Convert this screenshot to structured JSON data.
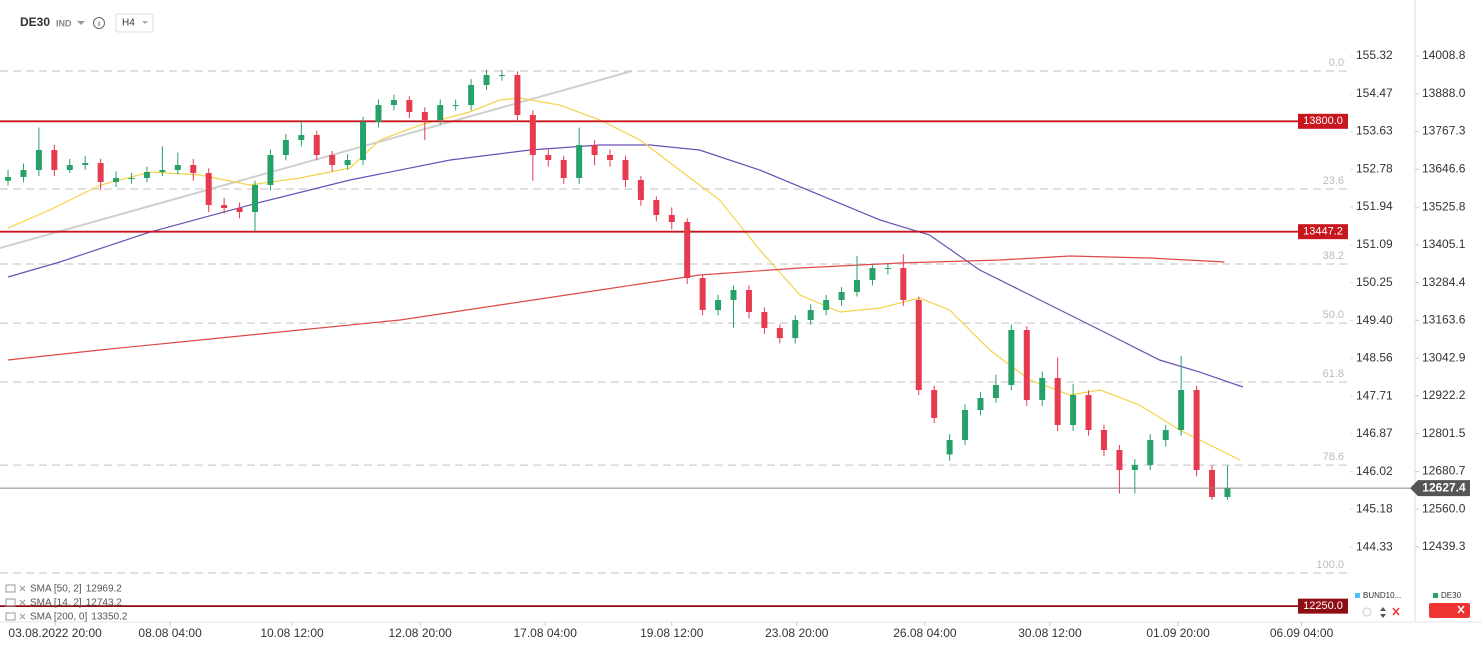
{
  "chart_data": {
    "type": "candlestick",
    "title": "DE30",
    "instrument_type": "IND",
    "timeframe": "H4",
    "xlim": [
      -1.04,
      182.3
    ],
    "ylim": [
      12205.7,
      14155.9
    ],
    "y2lim": [
      142.7,
      156.35
    ],
    "xticks": [
      {
        "value": 6.1,
        "label": "03.08.2022 20:00"
      },
      {
        "value": 21.0,
        "label": "08.08 04:00"
      },
      {
        "value": 36.8,
        "label": "10.08 12:00"
      },
      {
        "value": 53.4,
        "label": "12.08 20:00"
      },
      {
        "value": 69.6,
        "label": "17.08 04:00"
      },
      {
        "value": 86.0,
        "label": "19.08 12:00"
      },
      {
        "value": 102.2,
        "label": "23.08 20:00"
      },
      {
        "value": 118.8,
        "label": "26.08 04:00"
      },
      {
        "value": 135.0,
        "label": "30.08 12:00"
      },
      {
        "value": 151.6,
        "label": "01.09 20:00"
      },
      {
        "value": 167.6,
        "label": "06.09 04:00"
      }
    ],
    "yticks": [
      14008.8,
      {
        "value": 13888.0,
        "label": "13888.0"
      },
      13767.3,
      13646.6,
      13525.8,
      13405.1,
      13284.4,
      13163.6,
      13042.9,
      12922.2,
      12801.5,
      12680.7,
      {
        "value": 12560.0,
        "label": "12560.0"
      },
      12439.3
    ],
    "y2ticks": [
      155.32,
      154.47,
      153.63,
      152.78,
      151.94,
      151.09,
      150.25,
      {
        "value": 149.4,
        "label": "149.40"
      },
      148.56,
      147.71,
      146.87,
      146.02,
      145.18,
      144.33
    ],
    "x": [
      0,
      2,
      4,
      6,
      8,
      10,
      12,
      14,
      16,
      18,
      20,
      22,
      24,
      26,
      28,
      30,
      32,
      34,
      36,
      38,
      40,
      42,
      44,
      46,
      48,
      50,
      52,
      54,
      56,
      58,
      60,
      62,
      64,
      66,
      68,
      70,
      72,
      74,
      76,
      78,
      80,
      82,
      84,
      86,
      88,
      90,
      92,
      94,
      96,
      98,
      100,
      102,
      104,
      106,
      108,
      110,
      112,
      114,
      116,
      118,
      120,
      122,
      124,
      126,
      128,
      130,
      132,
      134,
      136,
      138,
      140,
      142,
      144,
      146,
      148,
      150,
      152,
      154,
      156,
      158
    ],
    "series": [
      {
        "name": "DE30",
        "up_color": "#26a269",
        "down_color": "#e63a4f",
        "open": [
          13610,
          13622.0,
          13644.3,
          13708.3,
          13644.3,
          13660.3,
          13666.7,
          13606.0,
          13618.8,
          13618.8,
          13637.9,
          13644.3,
          13660.3,
          13634.8,
          13532.4,
          13522.9,
          13510.1,
          13596.4,
          13692.3,
          13740.3,
          13756.2,
          13692.3,
          13660.3,
          13676.3,
          13797.8,
          13852.1,
          13868.1,
          13829.8,
          13804.2,
          13852.1,
          13852.1,
          13916.1,
          13948.1,
          13948.1,
          13820.2,
          13692.3,
          13676.3,
          13618.8,
          13724.3,
          13692.3,
          13676.3,
          13612.4,
          13548.4,
          13500.5,
          13478.1,
          13299.1,
          13196.8,
          13228.7,
          13260.7,
          13190.4,
          13139.2,
          13107.2,
          13164.8,
          13196.8,
          13228.7,
          13254.3,
          13292.7,
          13331.0,
          13331.0,
          13228.7,
          12941.0,
          12735,
          12781.2,
          12877.1,
          12915.4,
          12957.0,
          13132.8,
          12909.0,
          12979.4,
          12829.1,
          12925.0,
          12813.1,
          12749.2,
          12685.2,
          12701.2,
          12781.2,
          12813.1,
          12941.0,
          12685.2,
          12598.9
        ],
        "high": [
          13645,
          13665,
          13780,
          13725,
          13680,
          13690,
          13680,
          13640,
          13635,
          13655,
          13720,
          13700,
          13680,
          13650,
          13555,
          13540,
          13610,
          13710,
          13760,
          13800,
          13770,
          13705,
          13695,
          13815,
          13870,
          13885,
          13880,
          13845,
          13870,
          13870,
          13935,
          13965,
          13965,
          13960,
          13835,
          13710,
          13690,
          13780,
          13740,
          13710,
          13690,
          13625,
          13560,
          13525,
          13490,
          13310,
          13245,
          13275,
          13275,
          13205,
          13150,
          13180,
          13215,
          13245,
          13270,
          13370,
          13345,
          13345,
          13375,
          13240,
          12955,
          12800,
          12895,
          12935,
          12990,
          13150,
          13145,
          13000,
          13045,
          12960,
          12940,
          12830,
          12765,
          12720,
          12800,
          12830,
          13050,
          12955,
          12700,
          12700
        ],
        "low": [
          13595,
          13605,
          13625,
          13625,
          13635,
          13645,
          13580,
          13590,
          13600,
          13605,
          13625,
          13630,
          13610,
          13510,
          13505,
          13490,
          13450,
          13580,
          13675,
          13720,
          13675,
          13640,
          13645,
          13660,
          13780,
          13835,
          13810,
          13740,
          13790,
          13835,
          13835,
          13900,
          13930,
          13800,
          13610,
          13655,
          13600,
          13600,
          13660,
          13655,
          13590,
          13530,
          13480,
          13455,
          13280,
          13180,
          13180,
          13140,
          13170,
          13120,
          13090,
          13090,
          13150,
          13180,
          13210,
          13240,
          13275,
          13310,
          13210,
          12925,
          12835,
          12715,
          12765,
          12860,
          12900,
          12940,
          12890,
          12890,
          12810,
          12810,
          12795,
          12730,
          12610,
          12610,
          12685,
          12760,
          12795,
          12665,
          12590,
          12590
        ],
        "close": [
          13622.0,
          13644.3,
          13708.3,
          13644.3,
          13660.3,
          13666.7,
          13606.0,
          13618.8,
          13618.8,
          13637.9,
          13644.3,
          13660.3,
          13634.8,
          13532.4,
          13522.9,
          13510.1,
          13596.4,
          13692.3,
          13740.3,
          13756.2,
          13692.3,
          13660.3,
          13676.3,
          13797.8,
          13852.1,
          13868.1,
          13829.8,
          13804.2,
          13852.1,
          13852.1,
          13916.1,
          13948.1,
          13948.1,
          13820.2,
          13692.3,
          13676.3,
          13618.8,
          13724.3,
          13692.3,
          13676.3,
          13612.4,
          13548.4,
          13500.5,
          13478.1,
          13299.1,
          13196.8,
          13228.7,
          13260.7,
          13190.4,
          13139.2,
          13107.2,
          13164.8,
          13196.8,
          13228.7,
          13254.3,
          13292.7,
          13331.0,
          13331.0,
          13228.7,
          12941.0,
          12851.5,
          12781.2,
          12877.1,
          12915.4,
          12957.0,
          13132.8,
          12909.0,
          12979.4,
          12829.1,
          12925.0,
          12813.1,
          12749.2,
          12685.2,
          12701.2,
          12781.2,
          12813.1,
          12941.0,
          12685.2,
          12598.9,
          12627.4
        ]
      }
    ],
    "indicators": [
      {
        "name": "SMA [50, 2]",
        "last": 12969.2,
        "color": "#6a4fb5",
        "x": [
          0,
          6.7,
          18.4,
          31.3,
          44.3,
          57.3,
          67.6,
          76.7,
          83.2,
          89.6,
          97.4,
          105.2,
          113.0,
          119.4,
          125.9,
          133.7,
          141.5,
          149.2,
          154.4,
          160.0
        ],
        "values": [
          13302.3,
          13350.2,
          13446.1,
          13532.4,
          13612.4,
          13676.3,
          13708.3,
          13724.3,
          13724.3,
          13708.3,
          13644.3,
          13564.4,
          13484.5,
          13436.5,
          13324.6,
          13228.7,
          13132.8,
          13036.9,
          12998.5,
          12950.6
        ]
      },
      {
        "name": "SMA [14, 2]",
        "last": 12743.2,
        "color": "#f3d34a",
        "x": [
          0,
          5.4,
          12.0,
          18.4,
          24.9,
          31.3,
          37.8,
          44.3,
          48.2,
          53.4,
          59.8,
          63.7,
          66.3,
          71.5,
          76.7,
          81.9,
          87.0,
          92.2,
          97.4,
          102.6,
          107.8,
          113.0,
          118.1,
          122.0,
          127.2,
          132.4,
          137.6,
          141.5,
          146.6,
          151.8,
          155.7,
          159.6
        ],
        "values": [
          13458.9,
          13516.5,
          13596.4,
          13637.9,
          13628.4,
          13596.4,
          13618.8,
          13650.7,
          13740.3,
          13788.2,
          13829.8,
          13868.1,
          13874.5,
          13852.1,
          13804.2,
          13740.3,
          13644.3,
          13548.4,
          13388.6,
          13244.7,
          13190.4,
          13203.2,
          13235.1,
          13196.8,
          13068.9,
          12973.0,
          12925.0,
          12941.0,
          12893.0,
          12813.1,
          12765.2,
          12717.2
        ]
      },
      {
        "name": "SMA [200, 0]",
        "last": 13350.2,
        "color": "#e04848",
        "x": [
          0,
          11.9,
          24.9,
          37.8,
          50.8,
          63.7,
          76.7,
          89.6,
          102.6,
          115.5,
          128.5,
          137.6,
          147.9,
          157.6
        ],
        "values": [
          13036.9,
          13068.9,
          13100.9,
          13132.8,
          13164.8,
          13212.7,
          13260.7,
          13308.7,
          13331.0,
          13347.0,
          13356.6,
          13369.4,
          13363.0,
          13350.2
        ]
      }
    ],
    "fib_levels": [
      {
        "value": 13960.8,
        "label": "0.0"
      },
      {
        "value": 13583.6,
        "label": "23.6"
      },
      {
        "value": 13343.8,
        "label": "38.2"
      },
      {
        "value": 13155.0,
        "label": "50.0"
      },
      {
        "value": 12966.6,
        "label": "61.8"
      },
      {
        "value": 12701.0,
        "label": "78.6"
      },
      {
        "value": 12356.0,
        "label": "100.0"
      }
    ],
    "levels": [
      {
        "value": 13800.0,
        "label": "13800.0",
        "color": "#c8161e"
      },
      {
        "value": 13447.2,
        "label": "13447.2",
        "color": "#c8161e"
      },
      {
        "value": 12250.0,
        "label": "12250.0",
        "color": "#8e0d12"
      }
    ],
    "current_price": 12627.4,
    "legend": [
      {
        "name": "BUND10...",
        "color": "#4fc3f7"
      },
      {
        "name": "DE30",
        "color": "#26a269"
      }
    ]
  }
}
